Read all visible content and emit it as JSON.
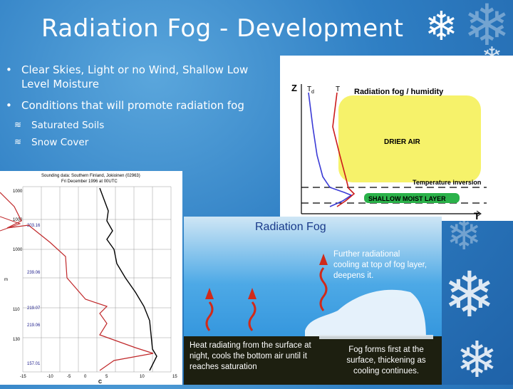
{
  "title": "Radiation Fog - Development",
  "bullets": [
    {
      "marker": "•",
      "text": "Clear Skies, Light or no Wind, Shallow Low Level Moisture"
    },
    {
      "marker": "•",
      "text": "Conditions that will promote radiation fog"
    }
  ],
  "subbullets": [
    {
      "marker": "≋",
      "text": "Saturated Soils"
    },
    {
      "marker": "≋",
      "text": "Snow Cover"
    }
  ],
  "profile_diagram": {
    "z_label": "Z",
    "td_label": "T",
    "td_sub": "d",
    "t_label": "T",
    "axis_t": "T",
    "heading": "Radiation fog / humidity",
    "drier": "DRIER AIR",
    "inversion": "Temperature inversion",
    "moist": "SHALLOW MOIST LAYER"
  },
  "sounding": {
    "header1": "Sounding data: Southern Finland, Jokioinen (02963)",
    "header2": "Fri December 1996 at 00UTC",
    "pressure_labels": [
      "203.16",
      "239.06",
      "219.07",
      "219.06",
      "157.01"
    ],
    "left_axis": [
      "1000",
      "1000",
      "1000",
      "m",
      "110",
      "130"
    ],
    "x_ticks": [
      "-15",
      "-10",
      "-5",
      "0",
      "5",
      "10",
      "15"
    ],
    "x_unit": "C"
  },
  "fog_diagram": {
    "title": "Radiation Fog",
    "cooling_text": "Further radiational cooling at top of fog layer, deepens it.",
    "heat_text": "Heat radiating from the surface at night, cools the bottom air until it reaches saturation",
    "forms_text": "Fog forms first at the surface, thickening as cooling continues."
  },
  "colors": {
    "background": "#2f7fc4",
    "dewpoint_line": "#3b3bd6",
    "temp_line": "#cc1c1c",
    "fog_yellow": "#f6f26a",
    "moist_green": "#2bb24a"
  }
}
